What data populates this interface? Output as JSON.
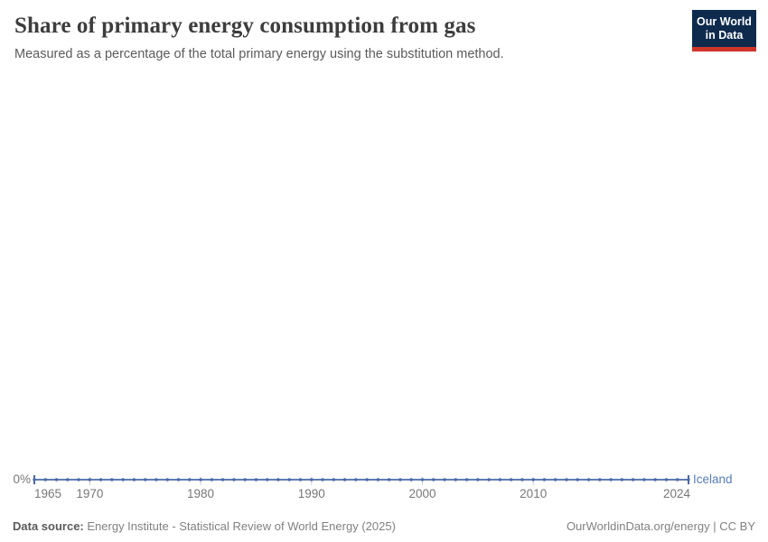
{
  "chart_data": {
    "type": "line",
    "title": "Share of primary energy consumption from gas",
    "subtitle": "Measured as a percentage of the total primary energy using the substitution method.",
    "xlabel": "",
    "ylabel": "",
    "x_range": [
      1965,
      2024
    ],
    "x_ticks": [
      1965,
      1970,
      1980,
      1990,
      2000,
      2010,
      2024
    ],
    "y_tick_label": "0%",
    "grid": false,
    "legend_position": "end-of-line",
    "series": [
      {
        "name": "Iceland",
        "x": [
          1965,
          1966,
          1967,
          1968,
          1969,
          1970,
          1971,
          1972,
          1973,
          1974,
          1975,
          1976,
          1977,
          1978,
          1979,
          1980,
          1981,
          1982,
          1983,
          1984,
          1985,
          1986,
          1987,
          1988,
          1989,
          1990,
          1991,
          1992,
          1993,
          1994,
          1995,
          1996,
          1997,
          1998,
          1999,
          2000,
          2001,
          2002,
          2003,
          2004,
          2005,
          2006,
          2007,
          2008,
          2009,
          2010,
          2011,
          2012,
          2013,
          2014,
          2015,
          2016,
          2017,
          2018,
          2019,
          2020,
          2021,
          2022,
          2023,
          2024
        ],
        "values": [
          0,
          0,
          0,
          0,
          0,
          0,
          0,
          0,
          0,
          0,
          0,
          0,
          0,
          0,
          0,
          0,
          0,
          0,
          0,
          0,
          0,
          0,
          0,
          0,
          0,
          0,
          0,
          0,
          0,
          0,
          0,
          0,
          0,
          0,
          0,
          0,
          0,
          0,
          0,
          0,
          0,
          0,
          0,
          0,
          0,
          0,
          0,
          0,
          0,
          0,
          0,
          0,
          0,
          0,
          0,
          0,
          0,
          0,
          0,
          0
        ]
      }
    ],
    "colors": {
      "line": "#4a69a8",
      "series_label": "#577cba",
      "axis_text": "#777777",
      "tick_mark": "#c6cbd4"
    }
  },
  "logo": {
    "line1": "Our World",
    "line2": "in Data",
    "navy": "#0e2b4e",
    "red": "#cf3429"
  },
  "footer": {
    "datasource_label": "Data source:",
    "datasource": "Energy Institute - Statistical Review of World Energy (2025)",
    "license": "OurWorldinData.org/energy | CC BY"
  }
}
